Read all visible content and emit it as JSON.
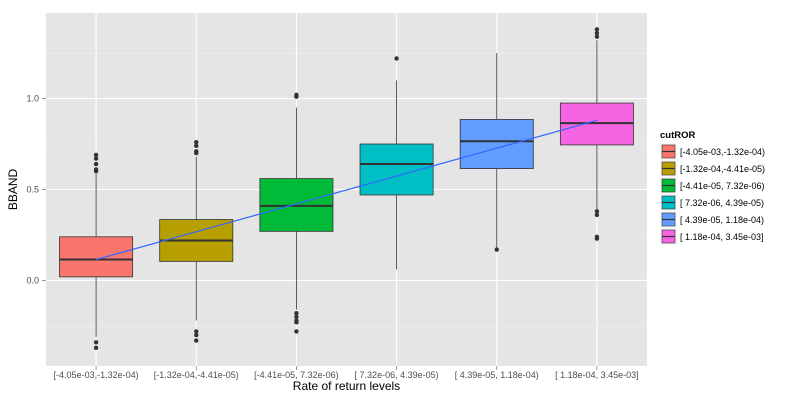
{
  "chart_data": {
    "type": "boxplot",
    "xlabel": "Rate of return levels",
    "ylabel": "BBAND",
    "ylim": [
      -0.47,
      1.47
    ],
    "y_ticks": [
      0.0,
      0.5,
      1.0
    ],
    "y_tick_labels": [
      "0.0",
      "0.5",
      "1.0"
    ],
    "grid": true,
    "legend_title": "cutROR",
    "legend_position": "right",
    "categories": [
      "[-4.05e-03,-1.32e-04)",
      "[-1.32e-04,-4.41e-05)",
      "[-4.41e-05, 7.32e-06)",
      "[ 7.32e-06, 4.39e-05)",
      "[ 4.39e-05, 1.18e-04)",
      "[ 1.18e-04, 3.45e-03]"
    ],
    "boxes": [
      {
        "q1": 0.02,
        "median": 0.115,
        "q3": 0.24,
        "whisker_low": -0.31,
        "whisker_high": 0.585,
        "outliers": [
          0.6,
          0.61,
          0.64,
          0.67,
          0.69,
          -0.34,
          -0.37
        ],
        "color": "#F8766D"
      },
      {
        "q1": 0.105,
        "median": 0.22,
        "q3": 0.335,
        "whisker_low": -0.22,
        "whisker_high": 0.68,
        "outliers": [
          0.7,
          0.71,
          0.74,
          0.76,
          -0.28,
          -0.3,
          -0.33
        ],
        "color": "#B79F00"
      },
      {
        "q1": 0.27,
        "median": 0.41,
        "q3": 0.56,
        "whisker_low": -0.16,
        "whisker_high": 0.95,
        "outliers": [
          1.01,
          1.02,
          -0.18,
          -0.2,
          -0.22,
          -0.23,
          -0.28
        ],
        "color": "#00BA38"
      },
      {
        "q1": 0.47,
        "median": 0.64,
        "q3": 0.75,
        "whisker_low": 0.06,
        "whisker_high": 1.1,
        "outliers": [
          1.22
        ],
        "color": "#00BFC4"
      },
      {
        "q1": 0.615,
        "median": 0.765,
        "q3": 0.885,
        "whisker_low": 0.17,
        "whisker_high": 1.25,
        "outliers": [
          0.17
        ],
        "color": "#619CFF"
      },
      {
        "q1": 0.745,
        "median": 0.865,
        "q3": 0.975,
        "whisker_low": 0.39,
        "whisker_high": 1.32,
        "outliers": [
          1.34,
          1.36,
          1.38,
          0.38,
          0.36,
          0.24,
          0.23
        ],
        "color": "#F564E3"
      }
    ],
    "trend_line": {
      "from_category": 0,
      "to_category": 5,
      "y_start": 0.115,
      "y_end": 0.88,
      "color": "#3366FF"
    }
  }
}
